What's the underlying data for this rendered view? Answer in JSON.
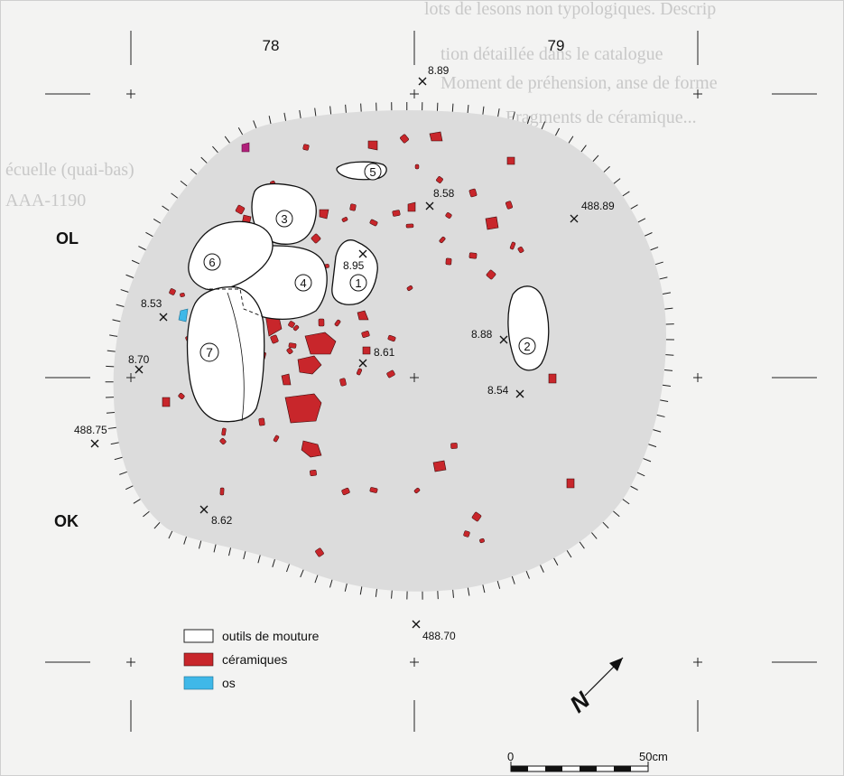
{
  "background_text": [
    "lots de lesons non typologiques. Descrip",
    "tion détaillée dans le catalogue",
    "Moment de préhension, anse de forme",
    "Fragments de céramique...",
    "écuelle (quai-bas)",
    "AAA-1190"
  ],
  "grid": {
    "column_labels": [
      "78",
      "79"
    ],
    "row_labels": [
      "OL",
      "OK"
    ]
  },
  "points": [
    {
      "label": "8.89"
    },
    {
      "label": "8.58"
    },
    {
      "label": "488.89"
    },
    {
      "label": "8.95"
    },
    {
      "label": "8.53"
    },
    {
      "label": "8.88"
    },
    {
      "label": "8.70"
    },
    {
      "label": "8.61"
    },
    {
      "label": "8.54"
    },
    {
      "label": "488.75"
    },
    {
      "label": "8.62"
    },
    {
      "label": "488.70"
    }
  ],
  "stones": [
    {
      "number": "1"
    },
    {
      "number": "2"
    },
    {
      "number": "3"
    },
    {
      "number": "4"
    },
    {
      "number": "5"
    },
    {
      "number": "6"
    },
    {
      "number": "7"
    }
  ],
  "legend": [
    {
      "label": "outils de mouture",
      "color": "#ffffff"
    },
    {
      "label": "céramiques",
      "color": "#c8262b"
    },
    {
      "label": "os",
      "color": "#3fb8e8"
    }
  ],
  "north_arrow": {
    "letter": "N",
    "icon": "north-arrow-icon"
  },
  "scale_bar": {
    "start_label": "0",
    "end_label": "50cm"
  },
  "colors": {
    "ceramic": "#c8262b",
    "bone": "#3fb8e8",
    "pit_fill": "#dcdcdc",
    "stone_fill": "#ffffff",
    "purple_find": "#b0207a"
  }
}
